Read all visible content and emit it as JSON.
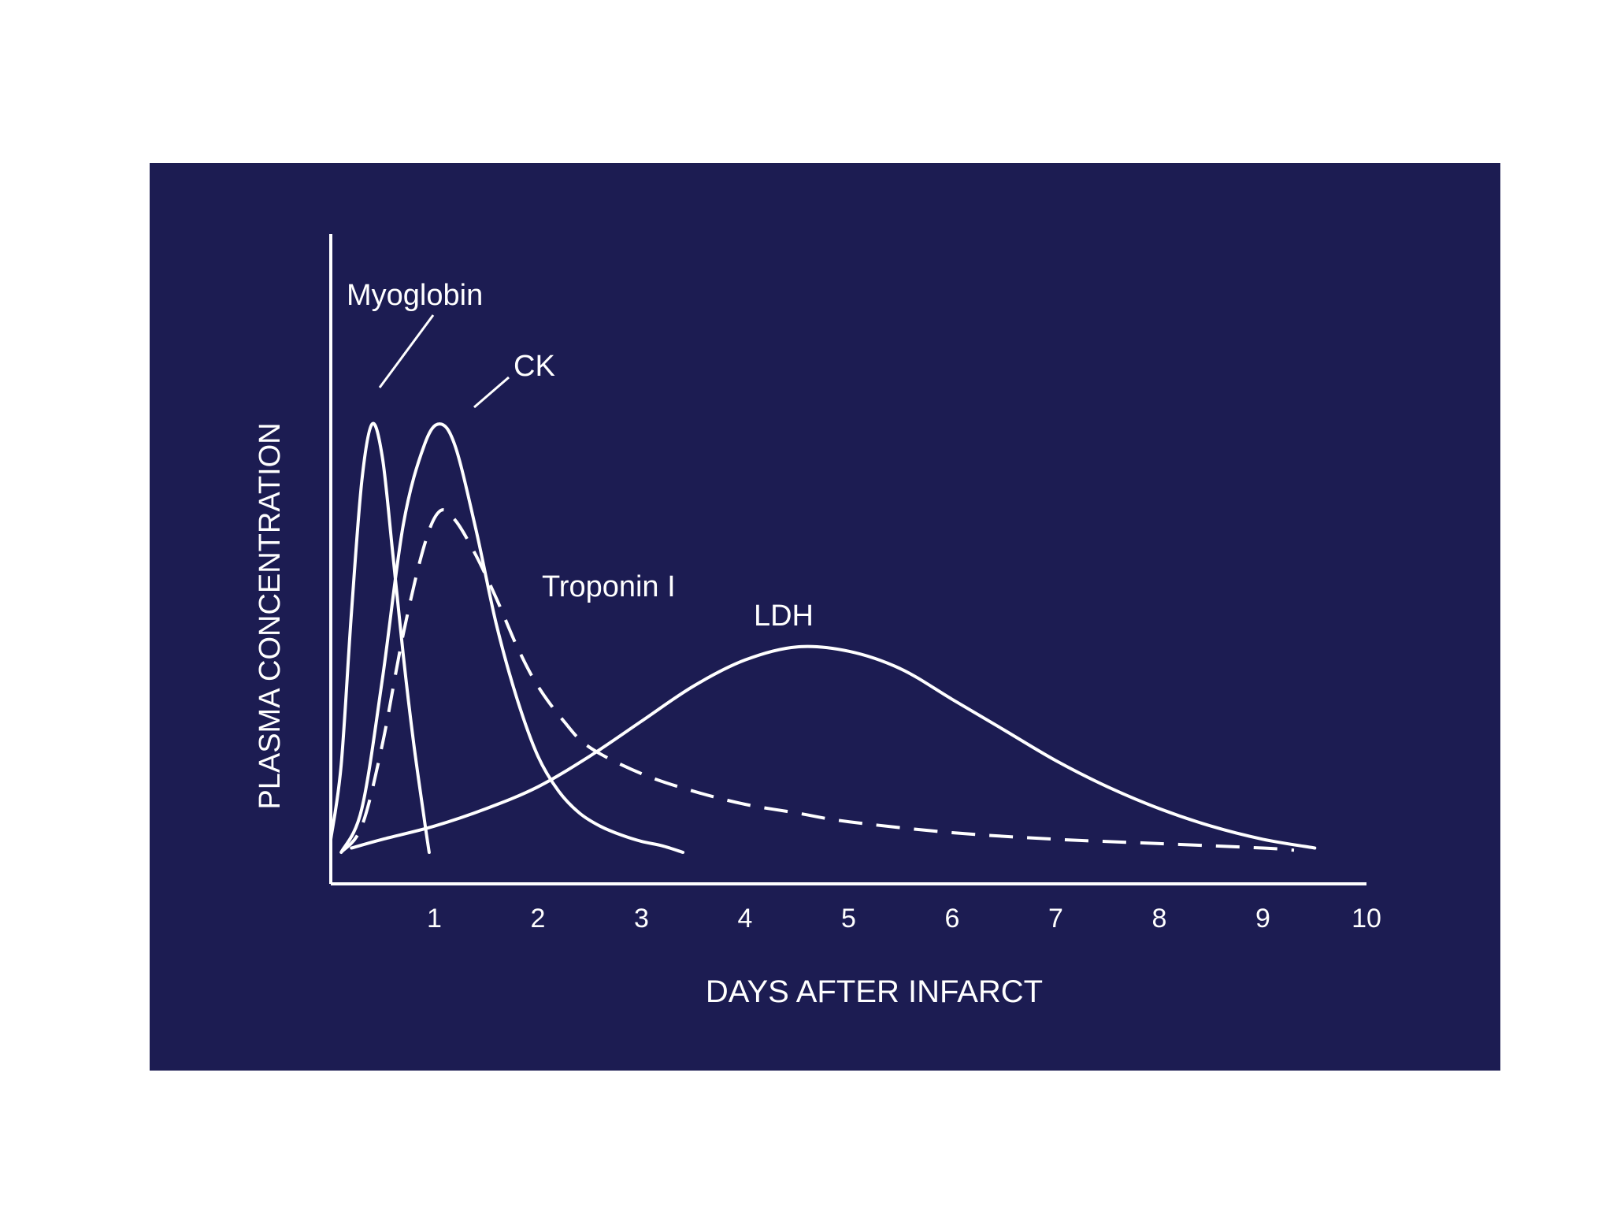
{
  "chart_data": {
    "type": "line",
    "title": "",
    "xlabel": "DAYS AFTER INFARCT",
    "ylabel": "PLASMA CONCENTRATION",
    "xlim": [
      0,
      10
    ],
    "ylim": [
      0,
      1.0
    ],
    "x_ticks": [
      "1",
      "2",
      "3",
      "4",
      "5",
      "6",
      "7",
      "8",
      "9",
      "10"
    ],
    "y_ticks": [],
    "grid": false,
    "background_color": "#1c1c52",
    "line_color": "#ffffff",
    "series": [
      {
        "name": "Myoglobin",
        "style": "solid",
        "x": [
          0.0,
          0.1,
          0.2,
          0.3,
          0.4,
          0.5,
          0.6,
          0.7,
          0.8,
          0.9,
          0.95
        ],
        "y": [
          0.03,
          0.2,
          0.55,
          0.85,
          0.98,
          0.9,
          0.68,
          0.45,
          0.25,
          0.08,
          0.0
        ]
      },
      {
        "name": "CK",
        "style": "solid",
        "x": [
          0.1,
          0.3,
          0.5,
          0.7,
          0.9,
          1.05,
          1.2,
          1.4,
          1.6,
          1.8,
          2.0,
          2.2,
          2.4,
          2.6,
          2.8,
          3.0,
          3.2,
          3.4
        ],
        "y": [
          0.0,
          0.1,
          0.4,
          0.75,
          0.93,
          0.98,
          0.93,
          0.74,
          0.52,
          0.35,
          0.22,
          0.14,
          0.09,
          0.06,
          0.04,
          0.025,
          0.015,
          0.0
        ]
      },
      {
        "name": "Troponin I",
        "style": "dashed",
        "x": [
          0.1,
          0.3,
          0.5,
          0.7,
          0.9,
          1.05,
          1.2,
          1.4,
          1.6,
          1.8,
          2.0,
          2.25,
          2.5,
          3.0,
          3.5,
          4.0,
          4.5,
          5.0,
          6.0,
          7.0,
          8.0,
          9.0,
          9.3
        ],
        "y": [
          0.0,
          0.06,
          0.25,
          0.5,
          0.7,
          0.78,
          0.76,
          0.68,
          0.58,
          0.47,
          0.38,
          0.3,
          0.24,
          0.18,
          0.14,
          0.11,
          0.09,
          0.07,
          0.045,
          0.03,
          0.02,
          0.01,
          0.005
        ]
      },
      {
        "name": "LDH",
        "style": "solid",
        "x": [
          0.2,
          0.5,
          1.0,
          1.5,
          2.0,
          2.5,
          3.0,
          3.5,
          4.0,
          4.5,
          5.0,
          5.5,
          6.0,
          6.5,
          7.0,
          7.5,
          8.0,
          8.5,
          9.0,
          9.5
        ],
        "y": [
          0.01,
          0.03,
          0.06,
          0.1,
          0.15,
          0.22,
          0.3,
          0.38,
          0.44,
          0.47,
          0.46,
          0.42,
          0.35,
          0.28,
          0.21,
          0.15,
          0.1,
          0.06,
          0.03,
          0.01
        ]
      }
    ],
    "annotations": [
      {
        "text": "Myoglobin",
        "points_to_series": "Myoglobin"
      },
      {
        "text": "CK",
        "points_to_series": "CK"
      },
      {
        "text": "Troponin I",
        "points_to_series": "Troponin I"
      },
      {
        "text": "LDH",
        "points_to_series": "LDH"
      }
    ]
  }
}
